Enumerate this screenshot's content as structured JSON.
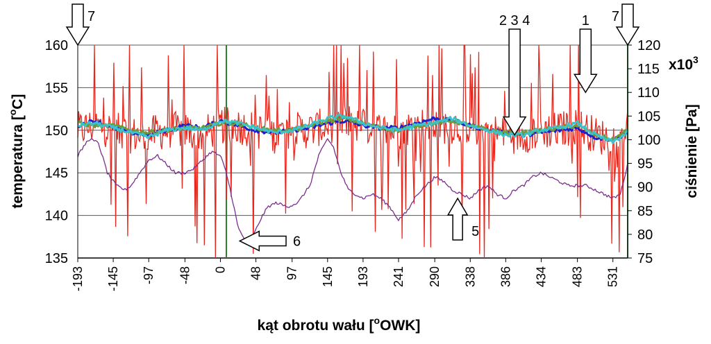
{
  "chart_data": {
    "type": "line",
    "xlabel_main": "kąt obrotu wału [",
    "xlabel_sup": "o",
    "xlabel_end": "OWK]",
    "ylabel_left_main": "temperatura [",
    "ylabel_left_sup": "o",
    "ylabel_left_end": "C]",
    "ylabel_right": "ciśnienie [Pa]",
    "right_multiplier_main": "x10",
    "right_multiplier_sup": "3",
    "xlim": [
      -193,
      551
    ],
    "ylim_left": [
      135,
      160
    ],
    "ylim_right": [
      75,
      120
    ],
    "x_ticks": [
      "-193",
      "-145",
      "-97",
      "-48",
      "0",
      "48",
      "97",
      "145",
      "193",
      "241",
      "290",
      "338",
      "386",
      "434",
      "483",
      "531"
    ],
    "x_tick_values": [
      -193,
      -145,
      -97,
      -48,
      0,
      48,
      97,
      145,
      193,
      241,
      290,
      338,
      386,
      434,
      483,
      531
    ],
    "left_ticks": [
      "135",
      "140",
      "145",
      "150",
      "155",
      "160"
    ],
    "left_tick_values": [
      135,
      140,
      145,
      150,
      155,
      160
    ],
    "right_ticks": [
      "75",
      "80",
      "85",
      "90",
      "95",
      "100",
      "105",
      "110",
      "115",
      "120"
    ],
    "right_tick_values": [
      75,
      80,
      85,
      90,
      95,
      100,
      105,
      110,
      115,
      120
    ],
    "grid": "horizontal",
    "vertical_markers": [
      {
        "x": 8,
        "color": "#2e7d32"
      },
      {
        "x": 551,
        "color": "#2e7d32"
      }
    ],
    "series": [
      {
        "axis": "right",
        "color": "#e8261c",
        "style": "noisy",
        "x": [
          -193,
          -170,
          -145,
          -121,
          -97,
          -73,
          -48,
          -24,
          0,
          24,
          48,
          73,
          97,
          121,
          145,
          169,
          193,
          217,
          241,
          266,
          290,
          314,
          338,
          362,
          386,
          410,
          434,
          458,
          483,
          507,
          531,
          551
        ],
        "values": [
          102,
          103,
          102,
          101,
          101,
          102,
          102,
          101,
          103,
          103,
          102,
          101,
          102,
          102,
          103,
          104,
          103,
          102,
          102,
          103,
          103,
          103,
          103,
          102,
          101,
          101,
          102,
          102,
          103,
          101,
          100,
          103
        ]
      },
      {
        "axis": "left",
        "color": "#7b2d8e",
        "style": "line",
        "x": [
          -193,
          -178,
          -165,
          -153,
          -141,
          -129,
          -121,
          -109,
          -97,
          -85,
          -73,
          -61,
          -48,
          -36,
          -24,
          -12,
          0,
          8,
          16,
          24,
          34,
          44,
          54,
          64,
          76,
          90,
          105,
          121,
          133,
          145,
          153,
          163,
          173,
          183,
          193,
          205,
          217,
          229,
          241,
          253,
          266,
          278,
          290,
          302,
          314,
          326,
          338,
          350,
          362,
          374,
          386,
          398,
          410,
          422,
          434,
          446,
          458,
          470,
          483,
          495,
          507,
          519,
          531,
          541,
          551
        ],
        "values": [
          147,
          149,
          148.5,
          145,
          143.5,
          143,
          143.5,
          145,
          146.5,
          147,
          146,
          145,
          145,
          145.5,
          146.5,
          147.5,
          147,
          145,
          142,
          138.5,
          137,
          137.5,
          139.5,
          141,
          141.5,
          141,
          141.5,
          143.5,
          147,
          149,
          148,
          145,
          143,
          142.5,
          142,
          142.5,
          142,
          141,
          139.5,
          140.5,
          142.5,
          143.5,
          144.5,
          144,
          143,
          142.5,
          142,
          143,
          143.5,
          142.5,
          142,
          143,
          143.5,
          144.5,
          145,
          144.5,
          144,
          143.5,
          143.5,
          143.5,
          143,
          142.5,
          142,
          142.5,
          146
        ]
      },
      {
        "axis": "right",
        "color": "#1f1fcc",
        "style": "line",
        "x": [
          -193,
          -170,
          -145,
          -121,
          -97,
          -73,
          -48,
          -24,
          0,
          24,
          48,
          73,
          97,
          121,
          145,
          169,
          193,
          217,
          241,
          266,
          290,
          314,
          338,
          362,
          386,
          410,
          434,
          458,
          483,
          507,
          531,
          551
        ],
        "values": [
          103,
          104,
          102.5,
          101.5,
          101,
          102,
          103,
          102.5,
          104,
          103,
          102,
          101.5,
          102,
          102.5,
          103.5,
          104,
          103,
          102.5,
          102.5,
          103.5,
          104.5,
          104,
          103,
          102,
          101.5,
          101,
          101.5,
          102,
          102.5,
          100.5,
          100,
          101.5
        ]
      },
      {
        "axis": "right",
        "color": "#6c9a3c",
        "style": "line",
        "x": [
          -193,
          -170,
          -145,
          -121,
          -97,
          -73,
          -48,
          -24,
          0,
          24,
          48,
          73,
          97,
          121,
          145,
          169,
          193,
          217,
          241,
          266,
          290,
          314,
          338,
          362,
          386,
          410,
          434,
          458,
          483,
          507,
          531,
          551
        ],
        "values": [
          103.5,
          103,
          103,
          102,
          101.5,
          102,
          102.5,
          102.5,
          103.5,
          103.5,
          102.5,
          102,
          102,
          103,
          104,
          104.5,
          103.5,
          102.5,
          102,
          103,
          103.5,
          104,
          103,
          102,
          101.5,
          101.5,
          102,
          102.5,
          103,
          101,
          100,
          102
        ]
      },
      {
        "axis": "right",
        "color": "#3cc2c8",
        "style": "line",
        "x": [
          -193,
          -170,
          -145,
          -121,
          -97,
          -73,
          -48,
          -24,
          0,
          24,
          48,
          73,
          97,
          121,
          145,
          169,
          193,
          217,
          241,
          266,
          290,
          314,
          338,
          362,
          386,
          410,
          434,
          458,
          483,
          507,
          531,
          551
        ],
        "values": [
          103,
          103.5,
          102.5,
          101.5,
          100.5,
          102,
          102.5,
          102,
          104,
          103.5,
          102.5,
          101.5,
          102,
          103,
          104.5,
          105,
          103.5,
          102.5,
          102,
          103,
          103.5,
          104.5,
          103,
          102,
          101,
          101,
          102,
          102.5,
          103.5,
          101,
          99.5,
          101.5
        ]
      }
    ],
    "markers": [
      {
        "label": "7",
        "x": -193,
        "direction": "down",
        "target_right": 120
      },
      {
        "label": "7",
        "x": 551,
        "direction": "down",
        "target_right": 120
      },
      {
        "label": "2 3 4",
        "x": 398,
        "direction": "down",
        "target_right": 101
      },
      {
        "label": "1",
        "x": 494,
        "direction": "down",
        "target_right": 110
      },
      {
        "label": "5",
        "x": 321,
        "direction": "up",
        "target_left": 142
      },
      {
        "label": "6",
        "x": 28,
        "direction": "left",
        "target_left": 137
      }
    ]
  }
}
